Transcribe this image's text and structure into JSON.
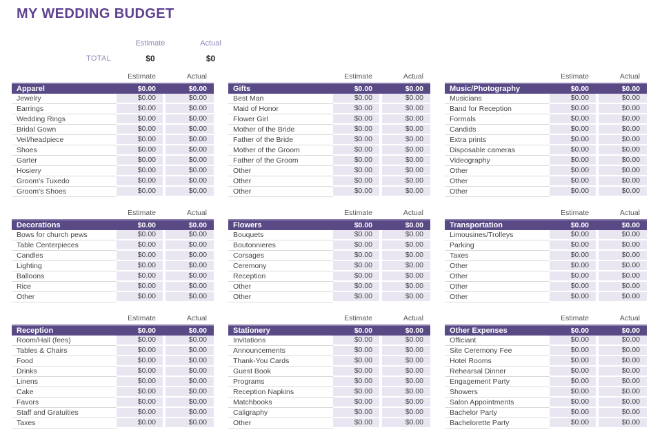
{
  "page": {
    "title": "MY WEDDING BUDGET"
  },
  "summary": {
    "estimate_label": "Estimate",
    "actual_label": "Actual",
    "total_label": "TOTAL",
    "total_estimate": "$0",
    "total_actual": "$0"
  },
  "column_headers": {
    "estimate": "Estimate",
    "actual": "Actual"
  },
  "colors": {
    "title-purple": "#5f4190",
    "header-purple": "#594a86",
    "header-purple-light": "#8d80ae",
    "cell-lavender": "#e9e6f2",
    "summary-label": "#9089ba"
  },
  "tables": [
    {
      "name": "Apparel",
      "estimate_total": "$0.00",
      "actual_total": "$0.00",
      "rows": [
        {
          "label": "Jewelry",
          "estimate": "$0.00",
          "actual": "$0.00"
        },
        {
          "label": "Earrings",
          "estimate": "$0.00",
          "actual": "$0.00"
        },
        {
          "label": "Wedding Rings",
          "estimate": "$0.00",
          "actual": "$0.00"
        },
        {
          "label": "Bridal Gown",
          "estimate": "$0.00",
          "actual": "$0.00"
        },
        {
          "label": "Veil/headpiece",
          "estimate": "$0.00",
          "actual": "$0.00"
        },
        {
          "label": "Shoes",
          "estimate": "$0.00",
          "actual": "$0.00"
        },
        {
          "label": "Garter",
          "estimate": "$0.00",
          "actual": "$0.00"
        },
        {
          "label": "Hosiery",
          "estimate": "$0.00",
          "actual": "$0.00"
        },
        {
          "label": "Groom's Tuxedo",
          "estimate": "$0.00",
          "actual": "$0.00"
        },
        {
          "label": "Groom's Shoes",
          "estimate": "$0.00",
          "actual": "$0.00"
        }
      ]
    },
    {
      "name": "Gifts",
      "estimate_total": "$0.00",
      "actual_total": "$0.00",
      "rows": [
        {
          "label": "Best Man",
          "estimate": "$0.00",
          "actual": "$0.00"
        },
        {
          "label": "Maid of Honor",
          "estimate": "$0.00",
          "actual": "$0.00"
        },
        {
          "label": "Flower Girl",
          "estimate": "$0.00",
          "actual": "$0.00"
        },
        {
          "label": "Mother of the Bride",
          "estimate": "$0.00",
          "actual": "$0.00"
        },
        {
          "label": "Father of the Bride",
          "estimate": "$0.00",
          "actual": "$0.00"
        },
        {
          "label": "Mother of the Groom",
          "estimate": "$0.00",
          "actual": "$0.00"
        },
        {
          "label": "Father of the Groom",
          "estimate": "$0.00",
          "actual": "$0.00"
        },
        {
          "label": "Other",
          "estimate": "$0.00",
          "actual": "$0.00"
        },
        {
          "label": "Other",
          "estimate": "$0.00",
          "actual": "$0.00"
        },
        {
          "label": "Other",
          "estimate": "$0.00",
          "actual": "$0.00"
        }
      ]
    },
    {
      "name": "Music/Photography",
      "estimate_total": "$0.00",
      "actual_total": "$0.00",
      "rows": [
        {
          "label": "Musicians",
          "estimate": "$0.00",
          "actual": "$0.00"
        },
        {
          "label": "Band for Reception",
          "estimate": "$0.00",
          "actual": "$0.00"
        },
        {
          "label": "Formals",
          "estimate": "$0.00",
          "actual": "$0.00"
        },
        {
          "label": "Candids",
          "estimate": "$0.00",
          "actual": "$0.00"
        },
        {
          "label": "Extra prints",
          "estimate": "$0.00",
          "actual": "$0.00"
        },
        {
          "label": "Disposable cameras",
          "estimate": "$0.00",
          "actual": "$0.00"
        },
        {
          "label": "Videography",
          "estimate": "$0.00",
          "actual": "$0.00"
        },
        {
          "label": "Other",
          "estimate": "$0.00",
          "actual": "$0.00"
        },
        {
          "label": "Other",
          "estimate": "$0.00",
          "actual": "$0.00"
        },
        {
          "label": "Other",
          "estimate": "$0.00",
          "actual": "$0.00"
        }
      ]
    },
    {
      "name": "Decorations",
      "estimate_total": "$0.00",
      "actual_total": "$0.00",
      "rows": [
        {
          "label": "Bows for church pews",
          "estimate": "$0.00",
          "actual": "$0.00"
        },
        {
          "label": "Table Centerpieces",
          "estimate": "$0.00",
          "actual": "$0.00"
        },
        {
          "label": "Candles",
          "estimate": "$0.00",
          "actual": "$0.00"
        },
        {
          "label": "Lighting",
          "estimate": "$0.00",
          "actual": "$0.00"
        },
        {
          "label": "Balloons",
          "estimate": "$0.00",
          "actual": "$0.00"
        },
        {
          "label": "Rice",
          "estimate": "$0.00",
          "actual": "$0.00"
        },
        {
          "label": "Other",
          "estimate": "$0.00",
          "actual": "$0.00"
        }
      ]
    },
    {
      "name": "Flowers",
      "estimate_total": "$0.00",
      "actual_total": "$0.00",
      "rows": [
        {
          "label": "Bouquets",
          "estimate": "$0.00",
          "actual": "$0.00"
        },
        {
          "label": "Boutonnieres",
          "estimate": "$0.00",
          "actual": "$0.00"
        },
        {
          "label": "Corsages",
          "estimate": "$0.00",
          "actual": "$0.00"
        },
        {
          "label": "Ceremony",
          "estimate": "$0.00",
          "actual": "$0.00"
        },
        {
          "label": "Reception",
          "estimate": "$0.00",
          "actual": "$0.00"
        },
        {
          "label": "Other",
          "estimate": "$0.00",
          "actual": "$0.00"
        },
        {
          "label": "Other",
          "estimate": "$0.00",
          "actual": "$0.00"
        }
      ]
    },
    {
      "name": "Transportation",
      "estimate_total": "$0.00",
      "actual_total": "$0.00",
      "rows": [
        {
          "label": "Limousines/Trolleys",
          "estimate": "$0.00",
          "actual": "$0.00"
        },
        {
          "label": "Parking",
          "estimate": "$0.00",
          "actual": "$0.00"
        },
        {
          "label": "Taxes",
          "estimate": "$0.00",
          "actual": "$0.00"
        },
        {
          "label": "Other",
          "estimate": "$0.00",
          "actual": "$0.00"
        },
        {
          "label": "Other",
          "estimate": "$0.00",
          "actual": "$0.00"
        },
        {
          "label": "Other",
          "estimate": "$0.00",
          "actual": "$0.00"
        },
        {
          "label": "Other",
          "estimate": "$0.00",
          "actual": "$0.00"
        }
      ]
    },
    {
      "name": "Reception",
      "estimate_total": "$0.00",
      "actual_total": "$0.00",
      "rows": [
        {
          "label": "Room/Hall (fees)",
          "estimate": "$0.00",
          "actual": "$0.00"
        },
        {
          "label": "Tables & Chairs",
          "estimate": "$0.00",
          "actual": "$0.00"
        },
        {
          "label": "Food",
          "estimate": "$0.00",
          "actual": "$0.00"
        },
        {
          "label": "Drinks",
          "estimate": "$0.00",
          "actual": "$0.00"
        },
        {
          "label": "Linens",
          "estimate": "$0.00",
          "actual": "$0.00"
        },
        {
          "label": "Cake",
          "estimate": "$0.00",
          "actual": "$0.00"
        },
        {
          "label": "Favors",
          "estimate": "$0.00",
          "actual": "$0.00"
        },
        {
          "label": "Staff and Gratuities",
          "estimate": "$0.00",
          "actual": "$0.00"
        },
        {
          "label": "Taxes",
          "estimate": "$0.00",
          "actual": "$0.00"
        }
      ]
    },
    {
      "name": "Stationery",
      "estimate_total": "$0.00",
      "actual_total": "$0.00",
      "rows": [
        {
          "label": "Invitations",
          "estimate": "$0.00",
          "actual": "$0.00"
        },
        {
          "label": "Announcements",
          "estimate": "$0.00",
          "actual": "$0.00"
        },
        {
          "label": "Thank-You Cards",
          "estimate": "$0.00",
          "actual": "$0.00"
        },
        {
          "label": "Guest Book",
          "estimate": "$0.00",
          "actual": "$0.00"
        },
        {
          "label": "Programs",
          "estimate": "$0.00",
          "actual": "$0.00"
        },
        {
          "label": "Reception Napkins",
          "estimate": "$0.00",
          "actual": "$0.00"
        },
        {
          "label": "Matchbooks",
          "estimate": "$0.00",
          "actual": "$0.00"
        },
        {
          "label": "Caligraphy",
          "estimate": "$0.00",
          "actual": "$0.00"
        },
        {
          "label": "Other",
          "estimate": "$0.00",
          "actual": "$0.00"
        }
      ]
    },
    {
      "name": "Other Expenses",
      "estimate_total": "$0.00",
      "actual_total": "$0.00",
      "rows": [
        {
          "label": "Officiant",
          "estimate": "$0.00",
          "actual": "$0.00"
        },
        {
          "label": "Site Ceremony Fee",
          "estimate": "$0.00",
          "actual": "$0.00"
        },
        {
          "label": "Hotel Rooms",
          "estimate": "$0.00",
          "actual": "$0.00"
        },
        {
          "label": "Rehearsal Dinner",
          "estimate": "$0.00",
          "actual": "$0.00"
        },
        {
          "label": "Engagement Party",
          "estimate": "$0.00",
          "actual": "$0.00"
        },
        {
          "label": "Showers",
          "estimate": "$0.00",
          "actual": "$0.00"
        },
        {
          "label": "Salon Appointments",
          "estimate": "$0.00",
          "actual": "$0.00"
        },
        {
          "label": "Bachelor Party",
          "estimate": "$0.00",
          "actual": "$0.00"
        },
        {
          "label": "Bachelorette Party",
          "estimate": "$0.00",
          "actual": "$0.00"
        }
      ]
    }
  ]
}
